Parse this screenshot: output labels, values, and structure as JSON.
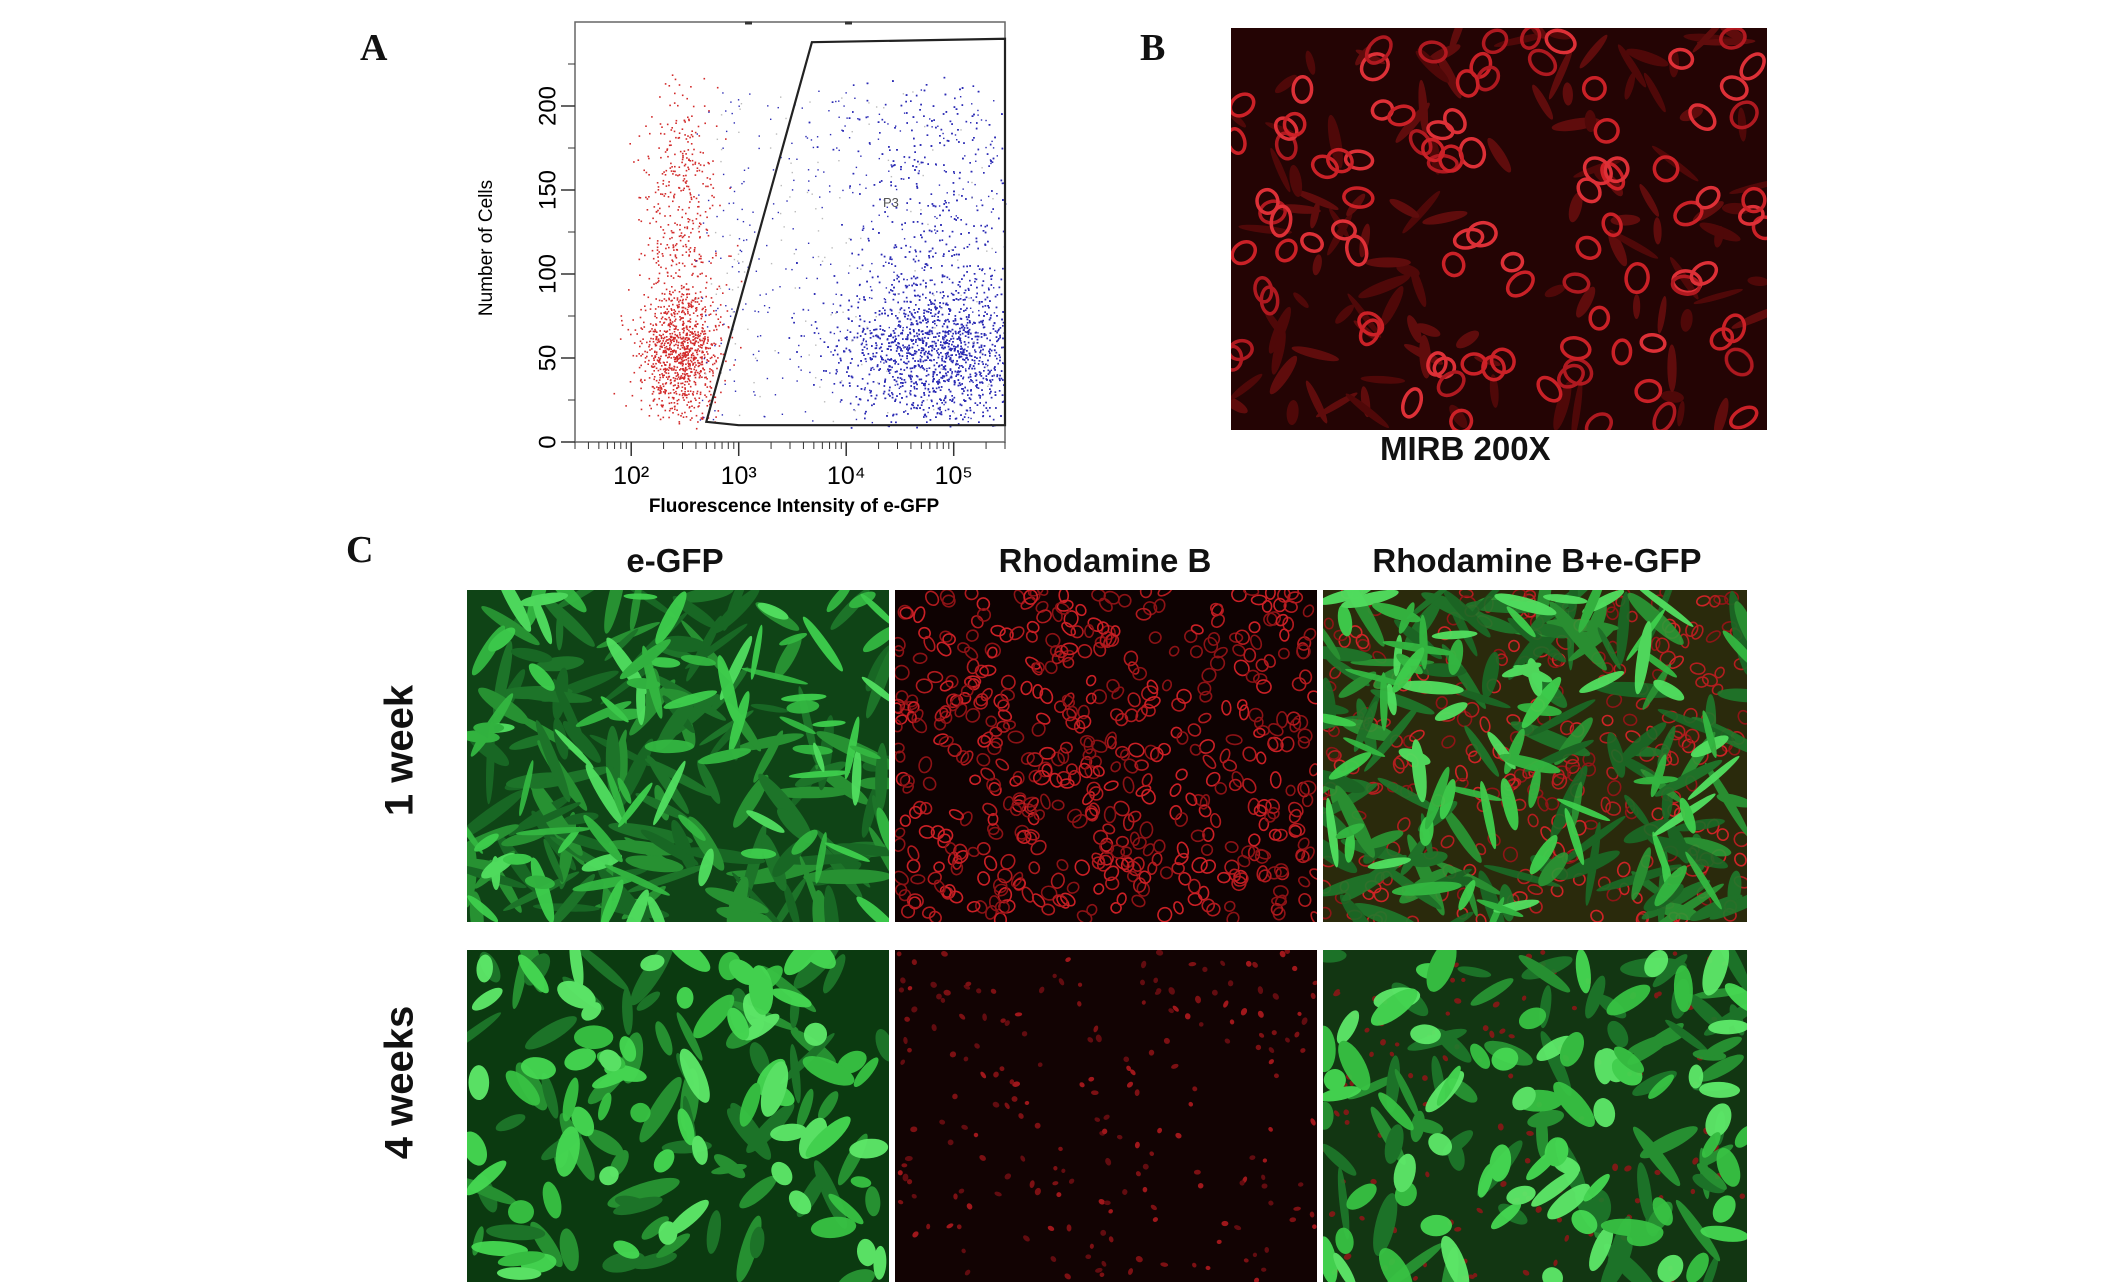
{
  "panels": {
    "A": {
      "letter": "A"
    },
    "B": {
      "letter": "B",
      "caption": "MIRB  200X"
    },
    "C": {
      "letter": "C",
      "columns": [
        "e-GFP",
        "Rhodamine B",
        "Rhodamine B+e-GFP"
      ],
      "rows": [
        "1  week",
        "4  weeks"
      ]
    }
  },
  "chart_data": {
    "type": "scatter",
    "title": "",
    "xlabel": "Fluorescence Intensity of e-GFP",
    "ylabel": "Number of Cells",
    "x_scale": "log",
    "xlim": [
      30,
      300000
    ],
    "ylim": [
      0,
      250
    ],
    "x_ticks": [
      "10²",
      "10³",
      "10⁴",
      "10⁵"
    ],
    "x_tick_values": [
      100,
      1000,
      10000,
      100000
    ],
    "y_ticks": [
      0,
      50,
      100,
      150,
      200
    ],
    "gate_label": "P3",
    "gate_polygon": [
      [
        500,
        12
      ],
      [
        4800,
        238
      ],
      [
        300000,
        240
      ],
      [
        300000,
        10
      ],
      [
        1000,
        10
      ]
    ],
    "series": [
      {
        "name": "",
        "color": "#d22b2b",
        "cluster": {
          "x_center": 280,
          "x_spread_log": 0.18,
          "y_center": 55,
          "y_spread": 20,
          "count": 1400
        }
      },
      {
        "name": "",
        "color": "#2b2bb4",
        "cluster": {
          "x_center": 70000,
          "x_spread_log": 0.45,
          "y_center": 55,
          "y_spread": 22,
          "count": 3800
        }
      }
    ]
  },
  "colors": {
    "green_cells": "#39d24a",
    "red_cells": "#e0242a",
    "red_bg": "#2a0505",
    "green_bg": "#0d3a12"
  }
}
